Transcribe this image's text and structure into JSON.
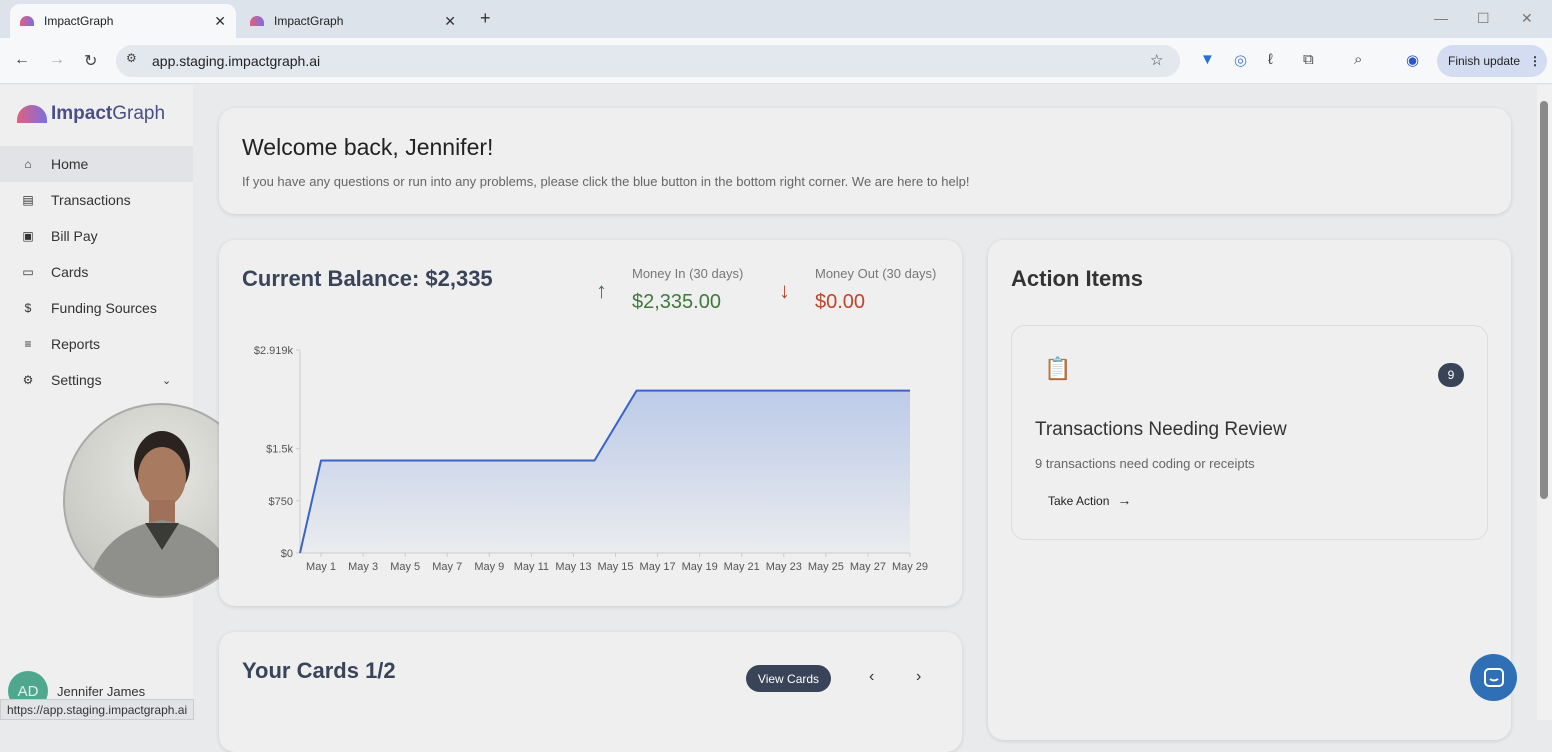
{
  "browser": {
    "tabs": [
      {
        "title": "ImpactGraph",
        "active": true
      },
      {
        "title": "ImpactGraph",
        "active": false
      }
    ],
    "url": "app.staging.impactgraph.ai",
    "finish_update": "Finish update",
    "status_url": "https://app.staging.impactgraph.ai"
  },
  "sidebar": {
    "logo_bold": "Impact",
    "logo_light": "Graph",
    "items": [
      {
        "label": "Home",
        "icon": "home-icon"
      },
      {
        "label": "Transactions",
        "icon": "list-icon"
      },
      {
        "label": "Bill Pay",
        "icon": "bill-icon"
      },
      {
        "label": "Cards",
        "icon": "card-icon"
      },
      {
        "label": "Funding Sources",
        "icon": "funding-icon"
      },
      {
        "label": "Reports",
        "icon": "reports-icon"
      },
      {
        "label": "Settings",
        "icon": "gear-icon"
      }
    ],
    "user": {
      "initials": "AD",
      "name": "Jennifer James"
    }
  },
  "welcome": {
    "title": "Welcome back, Jennifer!",
    "subtitle": "If you have any questions or run into any problems, please click the blue button in the bottom right corner. We are here to help!"
  },
  "balance": {
    "title": "Current Balance: $2,335",
    "money_in_label": "Money In (30 days)",
    "money_in": "$2,335.00",
    "money_out_label": "Money Out (30 days)",
    "money_out": "$0.00",
    "colors": {
      "in": "#3f7a3b",
      "out": "#c0452b",
      "line": "#3b63c4"
    }
  },
  "chart_data": {
    "type": "area",
    "x_ticks": [
      "May 1",
      "May 3",
      "May 5",
      "May 7",
      "May 9",
      "May 11",
      "May 13",
      "May 15",
      "May 17",
      "May 19",
      "May 21",
      "May 23",
      "May 25",
      "May 27",
      "May 29"
    ],
    "y_ticks": [
      "$0",
      "$750",
      "$1.5k",
      "$2.919k"
    ],
    "y_tick_values": [
      0,
      750,
      1500,
      2919
    ],
    "ylim": [
      0,
      2919
    ],
    "points": [
      {
        "date": "Apr 30",
        "value": 0
      },
      {
        "date": "May 1",
        "value": 1330
      },
      {
        "date": "May 14",
        "value": 1330
      },
      {
        "date": "May 16",
        "value": 2335
      },
      {
        "date": "May 29",
        "value": 2335
      }
    ]
  },
  "actions": {
    "title": "Action Items",
    "item": {
      "badge": "9",
      "title": "Transactions Needing Review",
      "desc": "9 transactions need coding or receipts",
      "cta": "Take Action"
    }
  },
  "cards": {
    "title": "Your Cards 1/2",
    "view": "View Cards"
  }
}
